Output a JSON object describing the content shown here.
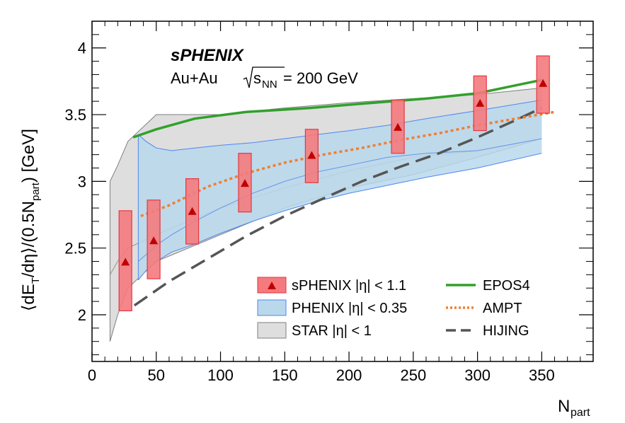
{
  "colors": {
    "sphenix": "#e5373f",
    "sphenix_fill": "#f47a7e",
    "sphenix_marker": "#c00000",
    "phenix_fill": "#b9d8ec",
    "phenix_line": "#4f86f0",
    "star_fill": "#dedede",
    "star_line": "#7f7f7f",
    "epos4": "#32a02c",
    "ampt": "#f07f30",
    "hijing": "#555555"
  },
  "header": {
    "experiment": "sPHENIX",
    "system": "Au+Au",
    "energy_lhs": "s",
    "energy_sub": "NN",
    "energy_rhs": " = 200 GeV"
  },
  "chart_data": {
    "type": "line",
    "xlabel": "N",
    "xlabel_sub": "part",
    "ylabel": "⟨dE",
    "ylabel_parts": [
      "⟨dE",
      "T",
      "/dη⟩/(0.5N",
      "part",
      ") [GeV]"
    ],
    "xlim": [
      0,
      390
    ],
    "ylim": [
      1.65,
      4.2
    ],
    "xticks": [
      0,
      50,
      100,
      150,
      200,
      250,
      300,
      350
    ],
    "xtick_labels": [
      "0",
      "50",
      "100",
      "150",
      "200",
      "250",
      "300",
      "350"
    ],
    "yticks": [
      2,
      2.5,
      3,
      3.5,
      4
    ],
    "ytick_labels": [
      "2",
      "2.5",
      "3",
      "3.5",
      "4"
    ],
    "legend": {
      "entries": [
        {
          "key": "sphenix",
          "label": "sPHENIX |η| < 1.1"
        },
        {
          "key": "phenix",
          "label": "PHENIX |η| < 0.35"
        },
        {
          "key": "star",
          "label": "STAR |η| < 1"
        },
        {
          "key": "epos4",
          "label": "EPOS4"
        },
        {
          "key": "ampt",
          "label": "AMPT"
        },
        {
          "key": "hijing",
          "label": "HIJING"
        }
      ]
    },
    "series": [
      {
        "name": "sPHENIX |η| < 1.1",
        "type": "points_with_sys_boxes",
        "x": [
          26,
          48,
          78,
          119,
          171,
          238,
          302,
          351
        ],
        "y": [
          2.39,
          2.55,
          2.77,
          2.98,
          3.19,
          3.4,
          3.58,
          3.73
        ],
        "sys_low": [
          2.03,
          2.27,
          2.53,
          2.77,
          2.99,
          3.21,
          3.38,
          3.51
        ],
        "sys_high": [
          2.78,
          2.86,
          3.02,
          3.21,
          3.39,
          3.61,
          3.79,
          3.94
        ]
      },
      {
        "name": "PHENIX |η| < 0.35",
        "type": "band",
        "x": [
          36,
          42,
          50,
          62,
          80,
          100,
          125,
          150,
          175,
          200,
          230,
          260,
          300,
          350
        ],
        "upper": [
          3.35,
          3.3,
          3.25,
          3.23,
          3.25,
          3.27,
          3.29,
          3.32,
          3.35,
          3.38,
          3.42,
          3.47,
          3.53,
          3.61
        ],
        "center": [
          2.4,
          2.45,
          2.52,
          2.6,
          2.7,
          2.8,
          2.91,
          3.0,
          3.07,
          3.12,
          3.18,
          3.21,
          3.23,
          3.32
        ],
        "lower": [
          2.26,
          2.33,
          2.4,
          2.47,
          2.53,
          2.61,
          2.7,
          2.78,
          2.85,
          2.91,
          2.97,
          3.03,
          3.1,
          3.21
        ]
      },
      {
        "name": "STAR |η| < 1",
        "type": "band",
        "x": [
          14,
          20,
          28,
          50,
          100,
          150,
          200,
          250,
          300,
          350
        ],
        "upper": [
          3.0,
          3.12,
          3.3,
          3.5,
          3.5,
          3.55,
          3.59,
          3.62,
          3.65,
          3.7
        ],
        "center": [
          2.3,
          2.4,
          2.5,
          2.6,
          2.8,
          2.95,
          3.08,
          3.18,
          3.23,
          3.32
        ],
        "lower": [
          1.8,
          2.0,
          2.2,
          2.4,
          2.6,
          2.8,
          2.95,
          3.05,
          3.18,
          3.32
        ]
      },
      {
        "name": "EPOS4",
        "type": "line",
        "x": [
          32,
          50,
          80,
          120,
          170,
          220,
          260,
          300,
          350
        ],
        "y": [
          3.33,
          3.39,
          3.47,
          3.52,
          3.55,
          3.59,
          3.62,
          3.66,
          3.76
        ]
      },
      {
        "name": "AMPT",
        "type": "line",
        "x": [
          38,
          60,
          90,
          120,
          150,
          180,
          210,
          240,
          270,
          300,
          330,
          360
        ],
        "y": [
          2.74,
          2.82,
          2.96,
          3.06,
          3.14,
          3.2,
          3.25,
          3.31,
          3.36,
          3.42,
          3.47,
          3.52
        ]
      },
      {
        "name": "HIJING",
        "type": "line",
        "x": [
          33,
          60,
          90,
          120,
          150,
          175,
          210,
          240,
          270,
          300,
          330,
          350
        ],
        "y": [
          2.07,
          2.25,
          2.42,
          2.59,
          2.74,
          2.85,
          3.0,
          3.11,
          3.21,
          3.33,
          3.46,
          3.55
        ]
      }
    ]
  }
}
